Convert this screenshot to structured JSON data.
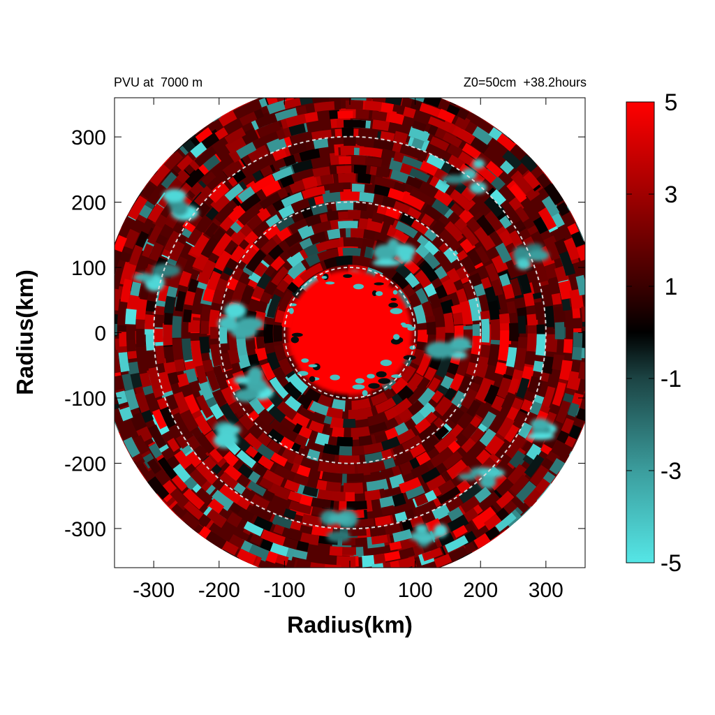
{
  "chart_data": {
    "type": "heatmap",
    "projection": "polar field on cartesian km grid",
    "title_left": "PVU at  7000 m",
    "title_right": "Z0=50cm  +38.2hours",
    "xlabel": "Radius(km)",
    "ylabel": "Radius(km)",
    "xlim": [
      -360,
      360
    ],
    "ylim": [
      -360,
      360
    ],
    "domain_radius_km": 385,
    "xticks": [
      -300,
      -200,
      -100,
      0,
      100,
      200,
      300
    ],
    "yticks": [
      300,
      200,
      100,
      0,
      -100,
      -200,
      -300
    ],
    "reference_circles_km": [
      100,
      200,
      300
    ],
    "colorbar": {
      "range": [
        -5,
        5
      ],
      "tick_labels": [
        "5",
        "3",
        "1",
        "-1",
        "-3",
        "-5"
      ],
      "tick_values": [
        5,
        3,
        1,
        -1,
        -3,
        -5
      ],
      "colors": [
        {
          "value": -5,
          "color": "#55e6e6"
        },
        {
          "value": -3,
          "color": "#3b9d9d"
        },
        {
          "value": -1,
          "color": "#1c4444"
        },
        {
          "value": 0,
          "color": "#000000"
        },
        {
          "value": 1,
          "color": "#3a0000"
        },
        {
          "value": 3,
          "color": "#a00000"
        },
        {
          "value": 5,
          "color": "#ff0000"
        }
      ]
    },
    "field_description": {
      "core_value": 5,
      "core_radius_km": 95,
      "background_value": 1.5,
      "negative_anomaly_regions_km": [
        {
          "x": -250,
          "y": 200
        },
        {
          "x": 180,
          "y": 240
        },
        {
          "x": -300,
          "y": 80
        },
        {
          "x": 10,
          "y": 80
        },
        {
          "x": 70,
          "y": 120
        },
        {
          "x": 280,
          "y": 120
        },
        {
          "x": -170,
          "y": 20
        },
        {
          "x": -150,
          "y": -80
        },
        {
          "x": 150,
          "y": -20
        },
        {
          "x": 300,
          "y": -150
        },
        {
          "x": 200,
          "y": -230
        },
        {
          "x": -20,
          "y": -300
        },
        {
          "x": 120,
          "y": -310
        },
        {
          "x": -200,
          "y": -150
        }
      ]
    }
  }
}
